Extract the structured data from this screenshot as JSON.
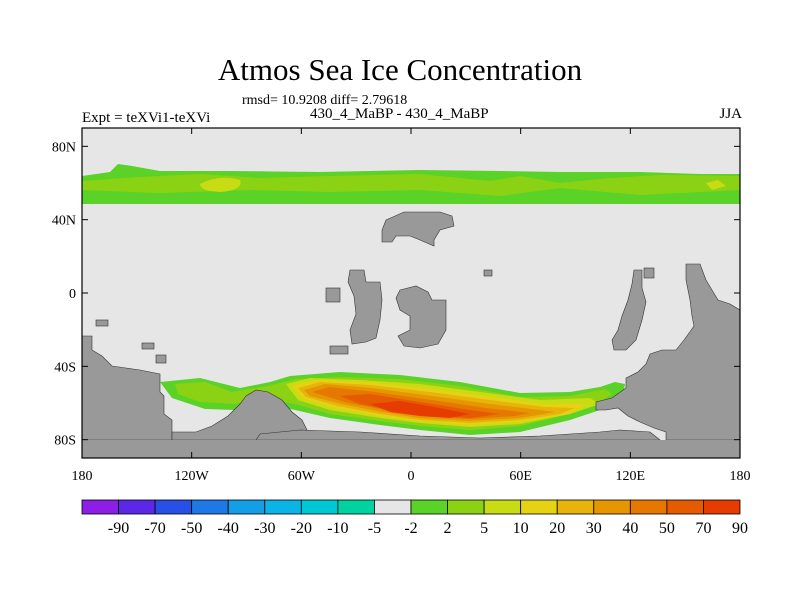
{
  "title": "Atmos Sea Ice Concentration",
  "stats": "rmsd= 10.9208 diff= 2.79618",
  "left_label": "Expt = teXVi1-teXVi",
  "center_label": "430_4_MaBP - 430_4_MaBP",
  "right_label": "JJA",
  "map": {
    "lon_range": [
      -180,
      180
    ],
    "lat_range": [
      -90,
      90
    ],
    "ocean_color": "#e6e6e6",
    "land_color": "#999999",
    "x_ticks": [
      {
        "value": -180,
        "label": "180"
      },
      {
        "value": -120,
        "label": "120W"
      },
      {
        "value": -60,
        "label": "60W"
      },
      {
        "value": 0,
        "label": "0"
      },
      {
        "value": 60,
        "label": "60E"
      },
      {
        "value": 120,
        "label": "120E"
      },
      {
        "value": 180,
        "label": "180"
      }
    ],
    "y_ticks": [
      {
        "value": 80,
        "label": "80N"
      },
      {
        "value": 40,
        "label": "40N"
      },
      {
        "value": 0,
        "label": "0"
      },
      {
        "value": -40,
        "label": "40S"
      },
      {
        "value": -80,
        "label": "80S"
      }
    ]
  },
  "colorbar": {
    "colors": [
      "#8c1ee6",
      "#5a28e6",
      "#2850e6",
      "#1e78e6",
      "#149ee6",
      "#0ab4e6",
      "#00c8d2",
      "#00d2a0",
      "#e6e6e6",
      "#5ad228",
      "#8cd214",
      "#c8dc14",
      "#e6d214",
      "#e6b40a",
      "#e69600",
      "#e67800",
      "#e65a00",
      "#e63c00"
    ],
    "labels": [
      "-90",
      "-70",
      "-50",
      "-40",
      "-30",
      "-20",
      "-10",
      "-5",
      "-2",
      "2",
      "5",
      "10",
      "20",
      "30",
      "40",
      "50",
      "70",
      "90"
    ]
  }
}
